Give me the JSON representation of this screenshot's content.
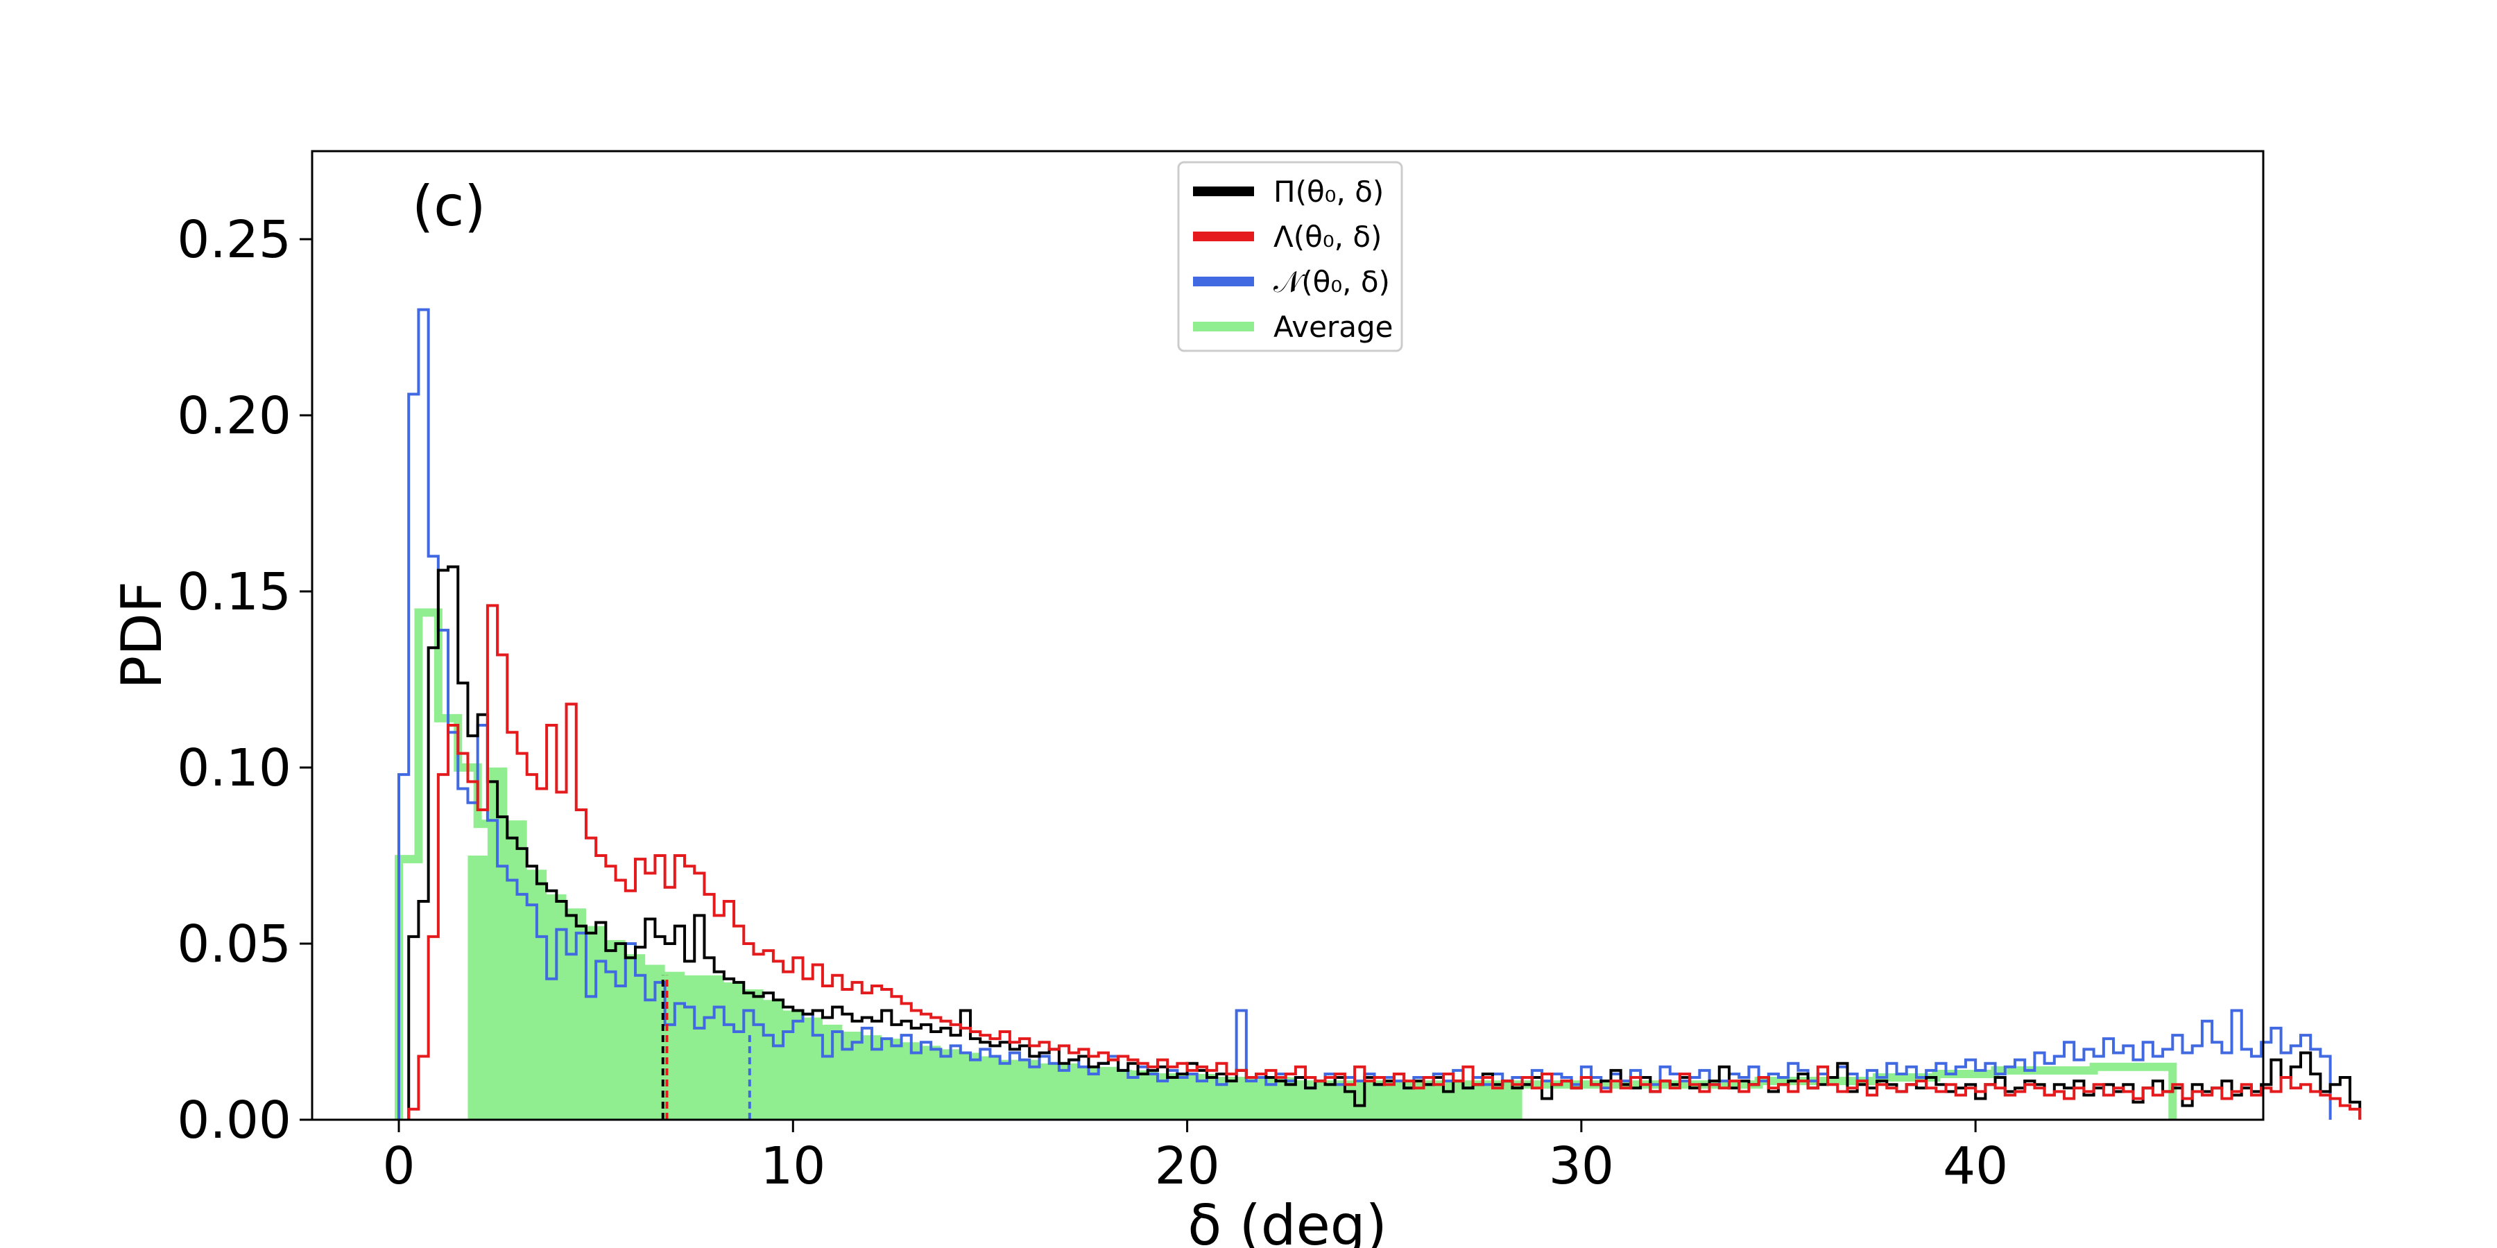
{
  "chart_data": {
    "type": "histogram",
    "panel_label": "(c)",
    "xlabel": "δ (deg)",
    "ylabel": "PDF",
    "xlim": [
      -2.2,
      47.3
    ],
    "ylim": [
      0,
      0.275
    ],
    "xticks": [
      0,
      10,
      20,
      30,
      40
    ],
    "yticks": [
      0.0,
      0.05,
      0.1,
      0.15,
      0.2,
      0.25
    ],
    "ytick_labels": [
      "0.00",
      "0.05",
      "0.10",
      "0.15",
      "0.20",
      "0.25"
    ],
    "grid": false,
    "legend_position": "top-center",
    "series": [
      {
        "key": "pi",
        "name": "Π(θ₀, δ)",
        "color": "#000000",
        "style": "step",
        "x0": 0.25,
        "binwidth": 0.25,
        "values": [
          0.052,
          0.062,
          0.134,
          0.156,
          0.157,
          0.124,
          0.109,
          0.115,
          0.096,
          0.086,
          0.08,
          0.077,
          0.072,
          0.067,
          0.065,
          0.062,
          0.058,
          0.055,
          0.053,
          0.056,
          0.048,
          0.05,
          0.046,
          0.049,
          0.057,
          0.052,
          0.05,
          0.055,
          0.045,
          0.058,
          0.046,
          0.042,
          0.04,
          0.039,
          0.036,
          0.035,
          0.036,
          0.034,
          0.032,
          0.031,
          0.03,
          0.031,
          0.029,
          0.032,
          0.03,
          0.028,
          0.029,
          0.028,
          0.031,
          0.027,
          0.028,
          0.026,
          0.027,
          0.025,
          0.026,
          0.024,
          0.031,
          0.023,
          0.022,
          0.021,
          0.022,
          0.02,
          0.021,
          0.018,
          0.019,
          0.02,
          0.016,
          0.017,
          0.018,
          0.015,
          0.016,
          0.017,
          0.014,
          0.016,
          0.013,
          0.014,
          0.015,
          0.012,
          0.013,
          0.016,
          0.014,
          0.012,
          0.013,
          0.011,
          0.014,
          0.012,
          0.013,
          0.012,
          0.011,
          0.01,
          0.012,
          0.009,
          0.011,
          0.01,
          0.012,
          0.008,
          0.004,
          0.012,
          0.01,
          0.011,
          0.013,
          0.009,
          0.011,
          0.01,
          0.012,
          0.008,
          0.011,
          0.009,
          0.01,
          0.013,
          0.01,
          0.011,
          0.009,
          0.01,
          0.012,
          0.006,
          0.01,
          0.011,
          0.009,
          0.012,
          0.01,
          0.011,
          0.014,
          0.01,
          0.009,
          0.012,
          0.008,
          0.011,
          0.01,
          0.012,
          0.009,
          0.01,
          0.011,
          0.015,
          0.009,
          0.011,
          0.01,
          0.012,
          0.008,
          0.01,
          0.011,
          0.013,
          0.009,
          0.01,
          0.012,
          0.016,
          0.008,
          0.01,
          0.009,
          0.011,
          0.01,
          0.008,
          0.01,
          0.009,
          0.012,
          0.01,
          0.008,
          0.009,
          0.01,
          0.006,
          0.01,
          0.012,
          0.008,
          0.009,
          0.011,
          0.01,
          0.007,
          0.01,
          0.009,
          0.011,
          0.007,
          0.009,
          0.01,
          0.008,
          0.01,
          0.005,
          0.009,
          0.011,
          0.008,
          0.009,
          0.004,
          0.01,
          0.008,
          0.009,
          0.011,
          0.007,
          0.009,
          0.008,
          0.01,
          0.017,
          0.012,
          0.015,
          0.019,
          0.013,
          0.008,
          0.01,
          0.012,
          0.005
        ]
      },
      {
        "key": "lambda",
        "name": "Λ(θ₀, δ)",
        "color": "#e41a1c",
        "style": "step",
        "x0": 0.25,
        "binwidth": 0.25,
        "values": [
          0.003,
          0.018,
          0.052,
          0.098,
          0.112,
          0.104,
          0.096,
          0.088,
          0.146,
          0.132,
          0.11,
          0.104,
          0.098,
          0.094,
          0.112,
          0.093,
          0.118,
          0.088,
          0.08,
          0.075,
          0.072,
          0.068,
          0.065,
          0.074,
          0.07,
          0.075,
          0.066,
          0.075,
          0.072,
          0.07,
          0.064,
          0.058,
          0.062,
          0.055,
          0.05,
          0.047,
          0.048,
          0.045,
          0.042,
          0.046,
          0.04,
          0.044,
          0.038,
          0.041,
          0.037,
          0.039,
          0.036,
          0.038,
          0.037,
          0.035,
          0.033,
          0.031,
          0.03,
          0.029,
          0.028,
          0.027,
          0.026,
          0.025,
          0.024,
          0.023,
          0.025,
          0.022,
          0.023,
          0.021,
          0.022,
          0.02,
          0.021,
          0.019,
          0.02,
          0.018,
          0.019,
          0.017,
          0.018,
          0.017,
          0.016,
          0.015,
          0.017,
          0.015,
          0.016,
          0.014,
          0.015,
          0.014,
          0.016,
          0.013,
          0.014,
          0.012,
          0.013,
          0.014,
          0.012,
          0.013,
          0.015,
          0.012,
          0.011,
          0.012,
          0.013,
          0.01,
          0.015,
          0.011,
          0.012,
          0.01,
          0.013,
          0.011,
          0.009,
          0.012,
          0.01,
          0.013,
          0.011,
          0.015,
          0.01,
          0.012,
          0.009,
          0.011,
          0.01,
          0.012,
          0.009,
          0.013,
          0.01,
          0.011,
          0.009,
          0.012,
          0.01,
          0.008,
          0.011,
          0.009,
          0.012,
          0.01,
          0.008,
          0.011,
          0.009,
          0.013,
          0.01,
          0.008,
          0.01,
          0.009,
          0.011,
          0.008,
          0.01,
          0.012,
          0.009,
          0.01,
          0.008,
          0.011,
          0.009,
          0.015,
          0.01,
          0.008,
          0.009,
          0.011,
          0.007,
          0.01,
          0.009,
          0.008,
          0.01,
          0.011,
          0.009,
          0.008,
          0.01,
          0.007,
          0.009,
          0.008,
          0.01,
          0.009,
          0.007,
          0.008,
          0.01,
          0.009,
          0.007,
          0.008,
          0.006,
          0.009,
          0.008,
          0.01,
          0.007,
          0.009,
          0.008,
          0.006,
          0.009,
          0.007,
          0.008,
          0.01,
          0.006,
          0.008,
          0.007,
          0.009,
          0.006,
          0.008,
          0.01,
          0.007,
          0.009,
          0.008,
          0.012,
          0.009,
          0.01,
          0.008,
          0.007,
          0.006,
          0.004,
          0.003
        ]
      },
      {
        "key": "n",
        "name": "𝒩(θ₀, δ)",
        "color": "#4169e1",
        "style": "step",
        "x0": 0,
        "binwidth": 0.25,
        "values": [
          0.098,
          0.206,
          0.23,
          0.16,
          0.139,
          0.11,
          0.094,
          0.09,
          0.112,
          0.085,
          0.072,
          0.068,
          0.064,
          0.061,
          0.052,
          0.04,
          0.054,
          0.047,
          0.053,
          0.035,
          0.045,
          0.042,
          0.038,
          0.05,
          0.041,
          0.034,
          0.039,
          0.027,
          0.033,
          0.032,
          0.026,
          0.029,
          0.032,
          0.027,
          0.025,
          0.031,
          0.027,
          0.024,
          0.021,
          0.025,
          0.028,
          0.03,
          0.024,
          0.018,
          0.025,
          0.02,
          0.022,
          0.026,
          0.02,
          0.023,
          0.021,
          0.024,
          0.019,
          0.022,
          0.02,
          0.018,
          0.021,
          0.019,
          0.017,
          0.02,
          0.018,
          0.016,
          0.019,
          0.017,
          0.015,
          0.018,
          0.016,
          0.014,
          0.017,
          0.015,
          0.013,
          0.016,
          0.018,
          0.014,
          0.012,
          0.015,
          0.013,
          0.011,
          0.014,
          0.012,
          0.013,
          0.011,
          0.012,
          0.01,
          0.013,
          0.031,
          0.011,
          0.012,
          0.01,
          0.013,
          0.011,
          0.012,
          0.009,
          0.011,
          0.013,
          0.01,
          0.012,
          0.011,
          0.013,
          0.01,
          0.012,
          0.011,
          0.009,
          0.012,
          0.01,
          0.013,
          0.011,
          0.014,
          0.009,
          0.012,
          0.01,
          0.013,
          0.011,
          0.012,
          0.01,
          0.014,
          0.011,
          0.013,
          0.012,
          0.01,
          0.015,
          0.012,
          0.009,
          0.013,
          0.011,
          0.014,
          0.012,
          0.01,
          0.015,
          0.013,
          0.011,
          0.012,
          0.014,
          0.01,
          0.011,
          0.013,
          0.012,
          0.015,
          0.011,
          0.013,
          0.012,
          0.016,
          0.014,
          0.011,
          0.013,
          0.012,
          0.015,
          0.013,
          0.011,
          0.014,
          0.012,
          0.016,
          0.013,
          0.015,
          0.012,
          0.014,
          0.016,
          0.013,
          0.015,
          0.017,
          0.014,
          0.016,
          0.013,
          0.015,
          0.017,
          0.014,
          0.019,
          0.016,
          0.018,
          0.022,
          0.017,
          0.02,
          0.018,
          0.023,
          0.019,
          0.021,
          0.017,
          0.022,
          0.018,
          0.02,
          0.024,
          0.019,
          0.021,
          0.028,
          0.022,
          0.019,
          0.031,
          0.02,
          0.018,
          0.022,
          0.026,
          0.019,
          0.021,
          0.024,
          0.02,
          0.018
        ]
      },
      {
        "key": "avg",
        "name": "Average",
        "color": "#90ee90",
        "style": "step",
        "x0": 0.0,
        "binwidth": 0.5,
        "values": [
          0.074,
          0.144,
          0.114,
          0.1,
          0.084,
          0.071,
          0.064,
          0.059,
          0.054,
          0.05,
          0.047,
          0.043,
          0.041,
          0.04,
          0.039,
          0.036,
          0.034,
          0.031,
          0.029,
          0.026,
          0.025,
          0.024,
          0.022,
          0.021,
          0.02,
          0.019,
          0.018,
          0.017,
          0.016,
          0.016,
          0.015,
          0.015,
          0.014,
          0.014,
          0.013,
          0.013,
          0.013,
          0.012,
          0.012,
          0.012,
          0.011,
          0.011,
          0.011,
          0.011,
          0.011,
          0.01,
          0.01,
          0.01,
          0.01,
          0.01,
          0.01,
          0.01,
          0.01,
          0.01,
          0.01,
          0.01,
          0.01,
          0.01,
          0.01,
          0.01,
          0.01,
          0.01,
          0.01,
          0.01,
          0.01,
          0.01,
          0.01,
          0.01,
          0.01,
          0.011,
          0.011,
          0.011,
          0.011,
          0.011,
          0.011,
          0.012,
          0.012,
          0.012,
          0.013,
          0.013,
          0.013,
          0.014,
          0.014,
          0.014,
          0.014,
          0.014,
          0.015,
          0.015,
          0.015,
          0.015
        ]
      }
    ],
    "filled_region": {
      "color": "#90ee90",
      "x0": 1.75,
      "x1": 28.5,
      "binwidth": 0.5,
      "values": [
        0.075,
        0.1,
        0.085,
        0.071,
        0.064,
        0.06,
        0.055,
        0.051,
        0.047,
        0.044,
        0.042,
        0.041,
        0.041,
        0.039,
        0.037,
        0.034,
        0.031,
        0.029,
        0.027,
        0.025,
        0.024,
        0.023,
        0.022,
        0.021,
        0.02,
        0.019,
        0.018,
        0.017,
        0.017,
        0.016,
        0.016,
        0.015,
        0.015,
        0.014,
        0.014,
        0.013,
        0.013,
        0.013,
        0.012,
        0.012,
        0.012,
        0.012,
        0.011,
        0.011,
        0.011,
        0.011,
        0.011,
        0.01,
        0.01,
        0.01,
        0.01,
        0.01,
        0.01,
        0.01
      ]
    },
    "vlines": [
      {
        "x": 6.7,
        "color": "#000000",
        "style": "dashed",
        "to": 0.041
      },
      {
        "x": 6.8,
        "color": "#e41a1c",
        "style": "dashed",
        "to": 0.041
      },
      {
        "x": 8.9,
        "color": "#4169e1",
        "style": "dashed",
        "to": 0.025
      }
    ]
  }
}
